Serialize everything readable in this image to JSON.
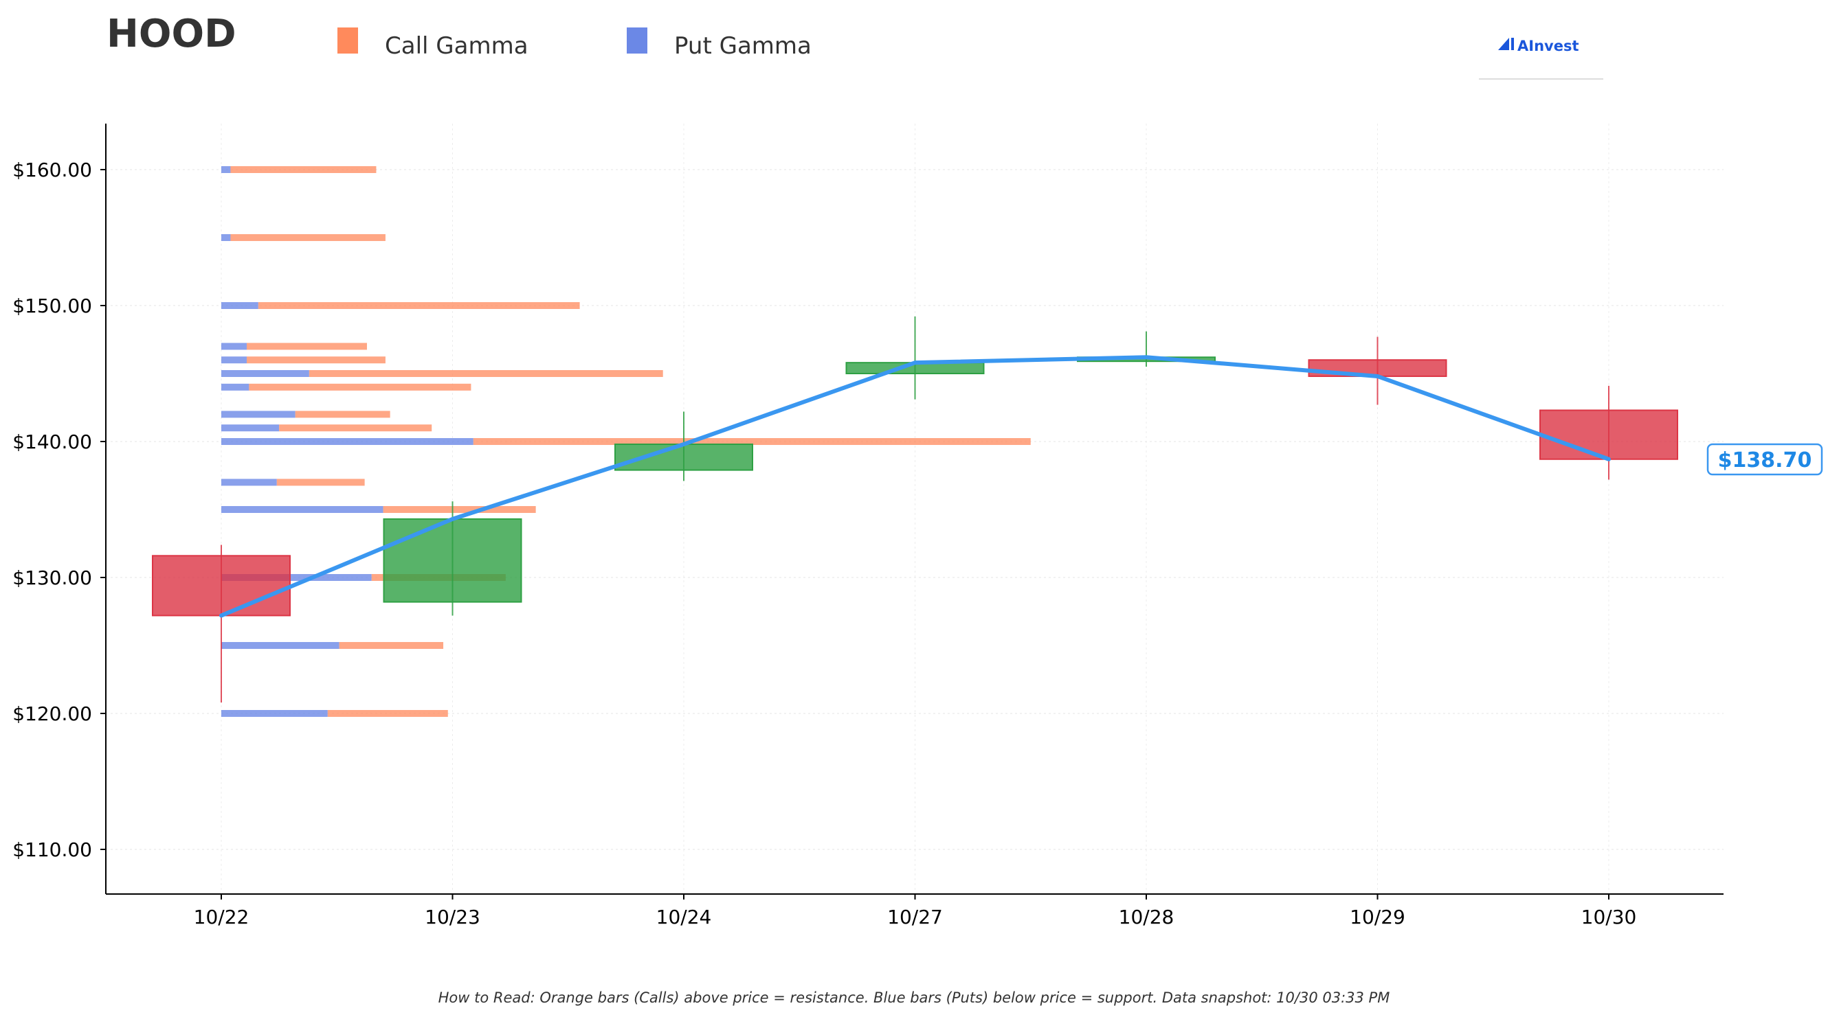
{
  "header": {
    "ticker": "HOOD",
    "legend": [
      {
        "label": "Call Gamma",
        "color": "#ff8a5c"
      },
      {
        "label": "Put Gamma",
        "color": "#6b88e6"
      }
    ],
    "logo_text": "AInvest",
    "logo_icon": "ainvest-chart-icon"
  },
  "chart_data": {
    "type": "candlestick-with-gamma-bars",
    "categories": [
      "10/22",
      "10/23",
      "10/24",
      "10/27",
      "10/28",
      "10/29",
      "10/30"
    ],
    "ylim": [
      106.5,
      163.3
    ],
    "yticks": [
      110,
      120,
      130,
      140,
      150,
      160
    ],
    "ytick_labels": [
      "$110.00",
      "$120.00",
      "$130.00",
      "$140.00",
      "$150.00",
      "$160.00"
    ],
    "grid": true,
    "candles": [
      {
        "date": "10/22",
        "open": 131.6,
        "high": 132.4,
        "low": 120.8,
        "close": 127.2
      },
      {
        "date": "10/23",
        "open": 128.2,
        "high": 135.6,
        "low": 127.2,
        "close": 134.3
      },
      {
        "date": "10/24",
        "open": 137.9,
        "high": 142.2,
        "low": 137.1,
        "close": 139.8
      },
      {
        "date": "10/27",
        "open": 145.0,
        "high": 149.2,
        "low": 143.1,
        "close": 145.8
      },
      {
        "date": "10/28",
        "open": 145.9,
        "high": 148.1,
        "low": 145.5,
        "close": 146.2
      },
      {
        "date": "10/29",
        "open": 146.0,
        "high": 147.7,
        "low": 142.7,
        "close": 144.8
      },
      {
        "date": "10/30",
        "open": 142.3,
        "high": 144.1,
        "low": 137.2,
        "close": 138.7
      }
    ],
    "price_line": [
      127.2,
      134.3,
      139.8,
      145.8,
      146.2,
      144.8,
      138.7
    ],
    "last_price_label": "$138.70",
    "gamma_bars_note": "Bar lengths in category-axis units, starting at 10/22",
    "gamma_bars": [
      {
        "strike": 160,
        "put": 0.04,
        "call": 0.63
      },
      {
        "strike": 155,
        "put": 0.04,
        "call": 0.67
      },
      {
        "strike": 150,
        "put": 0.16,
        "call": 1.39
      },
      {
        "strike": 147,
        "put": 0.11,
        "call": 0.52
      },
      {
        "strike": 146,
        "put": 0.11,
        "call": 0.6
      },
      {
        "strike": 145,
        "put": 0.38,
        "call": 1.53
      },
      {
        "strike": 144,
        "put": 0.12,
        "call": 0.96
      },
      {
        "strike": 142,
        "put": 0.32,
        "call": 0.41
      },
      {
        "strike": 141,
        "put": 0.25,
        "call": 0.66
      },
      {
        "strike": 140,
        "put": 1.09,
        "call": 2.41
      },
      {
        "strike": 137,
        "put": 0.24,
        "call": 0.38
      },
      {
        "strike": 135,
        "put": 0.7,
        "call": 0.66
      },
      {
        "strike": 130,
        "put": 0.65,
        "call": 0.58
      },
      {
        "strike": 125,
        "put": 0.51,
        "call": 0.45
      },
      {
        "strike": 120,
        "put": 0.46,
        "call": 0.52
      }
    ],
    "colors": {
      "up": "#2ea043",
      "down": "#dc3545",
      "price_line": "#3a97f0",
      "call": "#ff8a5c",
      "put": "#6b88e6"
    }
  },
  "footer": {
    "text": "How to Read: Orange bars (Calls) above price = resistance. Blue bars (Puts) below price = support. Data snapshot: 10/30 03:33 PM"
  }
}
